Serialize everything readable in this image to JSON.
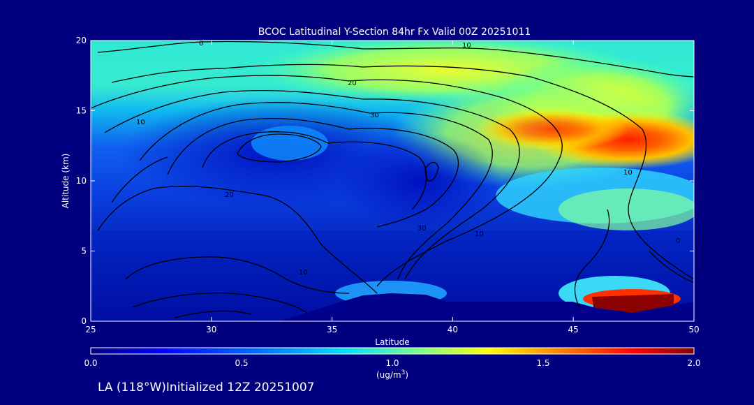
{
  "chart_data": {
    "type": "heatmap",
    "title": "BCOC Latitudinal Y-Section 84hr  Fx Valid 00Z 20251011",
    "xlabel": "Latitude",
    "ylabel": "Altitude (km)",
    "xlim": [
      25,
      50
    ],
    "ylim": [
      0,
      20
    ],
    "x_ticks": [
      25,
      30,
      35,
      40,
      45,
      50
    ],
    "y_ticks": [
      0,
      5,
      10,
      15,
      20
    ],
    "colorbar": {
      "min": 0.0,
      "max": 2.0,
      "ticks": [
        "0.0",
        "0.5",
        "1.0",
        "1.5",
        "2.0"
      ],
      "unit": "(ug/m",
      "unit_sup": "3",
      "unit_close": ")"
    },
    "contour_labels": [
      "0",
      "10",
      "20",
      "30",
      "10",
      "20",
      "30",
      "10",
      "10",
      "0",
      "10"
    ],
    "footer": "LA (118°W)Initialized 12Z 20251007",
    "colors": {
      "background": "#00007f",
      "low": "#00008b",
      "high": "#8b0000"
    }
  }
}
